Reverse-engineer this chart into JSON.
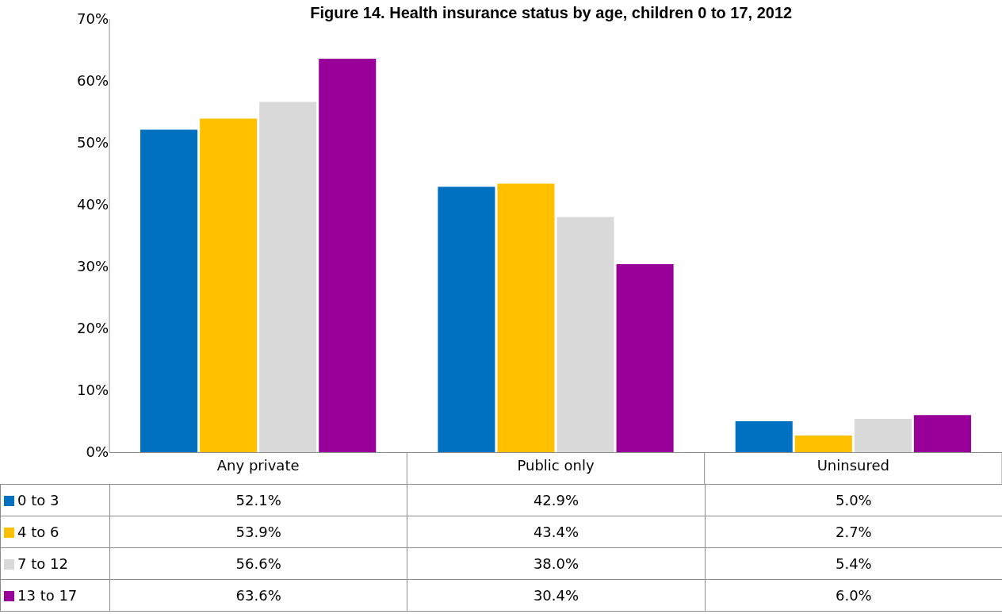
{
  "chart_data": {
    "type": "bar",
    "title": "Figure 14. Health insurance status by age, children 0 to 17, 2012",
    "categories": [
      "Any private",
      "Public only",
      "Uninsured"
    ],
    "series": [
      {
        "name": "0 to 3",
        "color": "#0070c0",
        "values": [
          52.1,
          42.9,
          5.0
        ],
        "value_labels": [
          "52.1%",
          "42.9%",
          "5.0%"
        ]
      },
      {
        "name": "4 to 6",
        "color": "#ffc000",
        "values": [
          53.9,
          43.4,
          2.7
        ],
        "value_labels": [
          "53.9%",
          "43.4%",
          "2.7%"
        ]
      },
      {
        "name": "7 to 12",
        "color": "#d9d9d9",
        "values": [
          56.6,
          38.0,
          5.4
        ],
        "value_labels": [
          "56.6%",
          "38.0%",
          "5.4%"
        ]
      },
      {
        "name": "13 to 17",
        "color": "#990099",
        "values": [
          63.6,
          30.4,
          6.0
        ],
        "value_labels": [
          "63.6%",
          "30.4%",
          "6.0%"
        ]
      }
    ],
    "ylim": [
      0,
      70
    ],
    "yticks": [
      {
        "value": 0,
        "label": "0%"
      },
      {
        "value": 10,
        "label": "10%"
      },
      {
        "value": 20,
        "label": "20%"
      },
      {
        "value": 30,
        "label": "30%"
      },
      {
        "value": 40,
        "label": "40%"
      },
      {
        "value": 50,
        "label": "50%"
      },
      {
        "value": 60,
        "label": "60%"
      },
      {
        "value": 70,
        "label": "70%"
      }
    ],
    "grid": false,
    "legend": "bottom"
  }
}
